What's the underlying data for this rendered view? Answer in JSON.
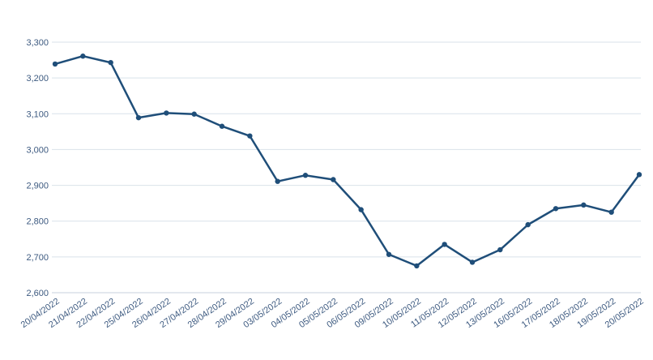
{
  "chart_data": {
    "type": "line",
    "title": "",
    "xlabel": "",
    "ylabel": "",
    "ylim": [
      2600,
      3300
    ],
    "yticks": [
      2600,
      2700,
      2800,
      2900,
      3000,
      3100,
      3200,
      3300
    ],
    "ytick_labels": [
      "2,600",
      "2,700",
      "2,800",
      "2,900",
      "3,000",
      "3,100",
      "3,200",
      "3,300"
    ],
    "grid": true,
    "line_color": "#1f4e79",
    "grid_color": "#d9e2ea",
    "categories": [
      "20/04/2022",
      "21/04/2022",
      "22/04/2022",
      "25/04/2022",
      "26/04/2022",
      "27/04/2022",
      "28/04/2022",
      "29/04/2022",
      "03/05/2022",
      "04/05/2022",
      "05/05/2022",
      "06/05/2022",
      "09/05/2022",
      "10/05/2022",
      "11/05/2022",
      "12/05/2022",
      "13/05/2022",
      "16/05/2022",
      "17/05/2022",
      "18/05/2022",
      "19/05/2022",
      "20/05/2022"
    ],
    "series": [
      {
        "values": [
          3239,
          3261,
          3243,
          3089,
          3102,
          3099,
          3065,
          3038,
          2911,
          2928,
          2916,
          2832,
          2707,
          2675,
          2735,
          2685,
          2720,
          2790,
          2835,
          2845,
          2825,
          2930
        ]
      }
    ]
  }
}
